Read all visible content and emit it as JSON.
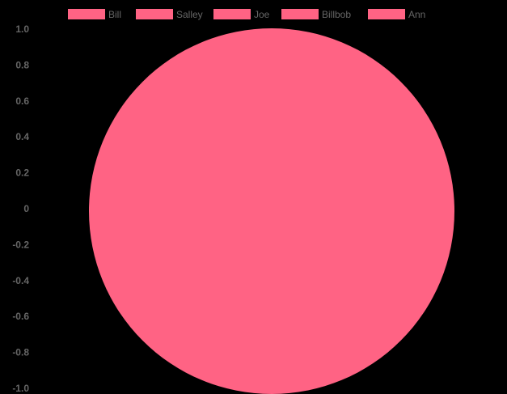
{
  "chart_data": {
    "type": "pie",
    "title": "",
    "labels": [
      "Bill",
      "Salley",
      "Joe",
      "Billbob",
      "Ann"
    ],
    "values": [
      1,
      0,
      0,
      0,
      0
    ],
    "slice_color": "#ff6384",
    "background": "#000000",
    "legend": {
      "position": "top",
      "items": [
        {
          "label": "Bill",
          "color": "#ff6384"
        },
        {
          "label": "Salley",
          "color": "#ff6384"
        },
        {
          "label": "Joe",
          "color": "#ff6384"
        },
        {
          "label": "Billbob",
          "color": "#ff6384"
        },
        {
          "label": "Ann",
          "color": "#ff6384"
        }
      ]
    },
    "y_axis": {
      "ticks": [
        "1.0",
        "0.8",
        "0.6",
        "0.4",
        "0.2",
        "0",
        "-0.2",
        "-0.4",
        "-0.6",
        "-0.8",
        "-1.0"
      ],
      "ylim": [
        -1.0,
        1.0
      ]
    },
    "grid": false
  }
}
